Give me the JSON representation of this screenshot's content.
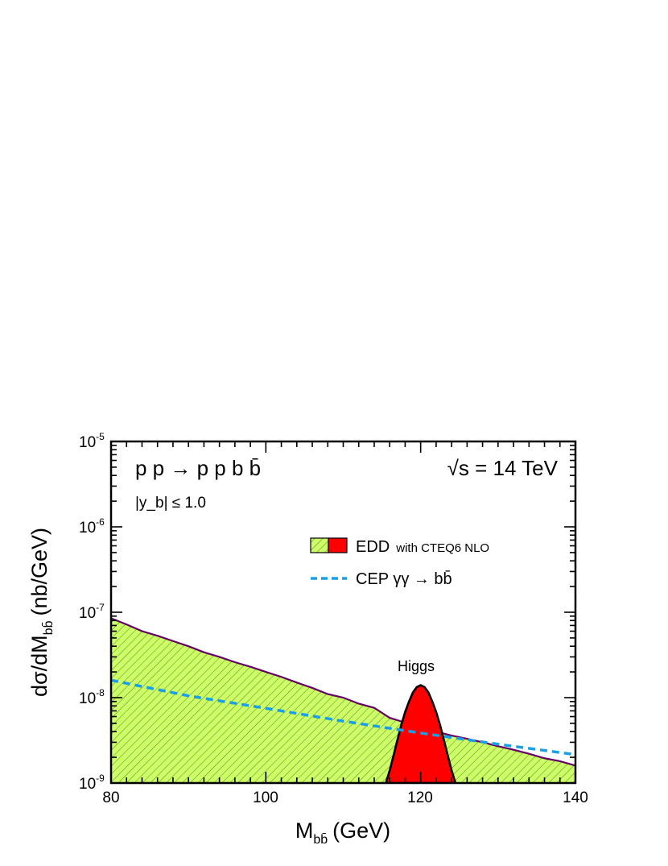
{
  "chart_data": {
    "type": "area",
    "xlabel": {
      "main": "M",
      "sub": "bb̄",
      "unit": "(GeV)"
    },
    "ylabel": {
      "main": "dσ/dM",
      "sub": "bb̄",
      "unit": "(nb/GeV)"
    },
    "xlim": [
      80,
      140
    ],
    "ylim": [
      1e-09,
      1e-05
    ],
    "y_scale": "log",
    "x_ticks": [
      "80",
      "100",
      "120",
      "140"
    ],
    "y_ticks": [
      {
        "base": "10",
        "exp": "-9",
        "value": 1e-09
      },
      {
        "base": "10",
        "exp": "-8",
        "value": 1e-08
      },
      {
        "base": "10",
        "exp": "-7",
        "value": 1e-07
      },
      {
        "base": "10",
        "exp": "-6",
        "value": 1e-06
      },
      {
        "base": "10",
        "exp": "-5",
        "value": 1e-05
      }
    ],
    "process_label": "p p → p p b b̄",
    "energy_label": "√s = 14 TeV",
    "cut_label": "|y_b| ≤ 1.0",
    "peak_label": "Higgs",
    "series": [
      {
        "name": "EDD with CTEQ6 NLO",
        "kind": "hatched-area",
        "color": "#ccff66",
        "edge_color": "#660066",
        "x": [
          80,
          82,
          84,
          86,
          88,
          90,
          92,
          94,
          96,
          98,
          100,
          102,
          104,
          106,
          108,
          110,
          112,
          114,
          116,
          118,
          120,
          122,
          124,
          126,
          128,
          130,
          132,
          134,
          136,
          138,
          140
        ],
        "y": [
          8.5e-08,
          7.2e-08,
          6e-08,
          5.3e-08,
          4.6e-08,
          4e-08,
          3.4e-08,
          3e-08,
          2.6e-08,
          2.3e-08,
          2e-08,
          1.75e-08,
          1.5e-08,
          1.3e-08,
          1.1e-08,
          1e-08,
          8.5e-09,
          7.6e-09,
          5.8e-09,
          5.1e-09,
          4.6e-09,
          4e-09,
          3.6e-09,
          3.3e-09,
          3e-09,
          2.7e-09,
          2.45e-09,
          2.2e-09,
          1.95e-09,
          1.8e-09,
          1.6e-09
        ]
      },
      {
        "name": "Higgs",
        "kind": "filled-peak",
        "color": "#ff0000",
        "x": [
          115.5,
          116,
          116.5,
          117,
          117.5,
          118,
          118.5,
          119,
          119.5,
          120,
          120.5,
          121,
          121.5,
          122,
          122.5,
          123,
          123.5,
          124,
          124.5
        ],
        "y": [
          1e-09,
          1.4e-09,
          2.1e-09,
          3.2e-09,
          4.8e-09,
          6.8e-09,
          9e-09,
          1.15e-08,
          1.33e-08,
          1.4e-08,
          1.33e-08,
          1.15e-08,
          9e-09,
          6.8e-09,
          4.8e-09,
          3.2e-09,
          2.1e-09,
          1.4e-09,
          1e-09
        ]
      },
      {
        "name": "CEP γγ → bb̄",
        "kind": "dashed-line",
        "color": "#1a9fe6",
        "x": [
          80,
          90,
          100,
          110,
          120,
          130,
          140
        ],
        "y": [
          1.6e-08,
          1.05e-08,
          7.5e-09,
          5.3e-09,
          3.85e-09,
          2.85e-09,
          2.15e-09
        ]
      }
    ],
    "legend": [
      {
        "label": "EDD",
        "note": "with CTEQ6 NLO"
      },
      {
        "label": "CEP  γγ → bb̄"
      }
    ],
    "legend_position": "upper-right",
    "grid": false
  }
}
